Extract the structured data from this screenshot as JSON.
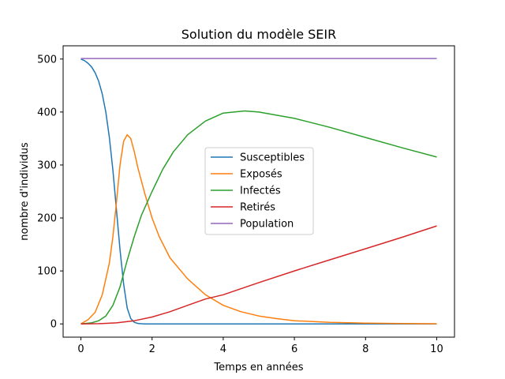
{
  "chart_data": {
    "type": "line",
    "title": "Solution du modèle SEIR",
    "xlabel": "Temps en années",
    "ylabel": "nombre d'individus",
    "xlim": [
      -0.5,
      10.5
    ],
    "ylim": [
      -25,
      525
    ],
    "xticks": [
      0,
      2,
      4,
      6,
      8,
      10
    ],
    "yticks": [
      0,
      100,
      200,
      300,
      400,
      500
    ],
    "grid": false,
    "legend_position": "center",
    "series": [
      {
        "name": "Susceptibles",
        "color": "#1f77b4",
        "x": [
          0,
          0.1,
          0.2,
          0.3,
          0.4,
          0.5,
          0.6,
          0.7,
          0.8,
          0.9,
          1.0,
          1.1,
          1.2,
          1.3,
          1.4,
          1.5,
          1.6,
          1.7,
          1.8,
          2.0,
          3,
          4,
          5,
          6,
          7,
          8,
          9,
          10
        ],
        "y": [
          500,
          497,
          492,
          485,
          474,
          458,
          434,
          400,
          352,
          290,
          215,
          140,
          75,
          30,
          10,
          3,
          1,
          0.3,
          0,
          0,
          0,
          0,
          0,
          0,
          0,
          0,
          0,
          0
        ]
      },
      {
        "name": "Exposés",
        "color": "#ff7f0e",
        "x": [
          0,
          0.2,
          0.4,
          0.6,
          0.8,
          0.9,
          1.0,
          1.1,
          1.2,
          1.3,
          1.4,
          1.5,
          1.6,
          1.8,
          2.0,
          2.2,
          2.5,
          3.0,
          3.5,
          4.0,
          4.5,
          5.0,
          5.5,
          6.0,
          7.0,
          8.0,
          9.0,
          10.0
        ],
        "y": [
          0,
          8,
          22,
          55,
          115,
          165,
          230,
          300,
          345,
          357,
          350,
          325,
          295,
          245,
          200,
          165,
          125,
          85,
          55,
          35,
          23,
          15,
          10,
          6,
          3,
          1.5,
          0.7,
          0.3
        ]
      },
      {
        "name": "Infectés",
        "color": "#2ca02c",
        "x": [
          0,
          0.3,
          0.5,
          0.7,
          0.9,
          1.1,
          1.3,
          1.5,
          1.7,
          2.0,
          2.3,
          2.6,
          3.0,
          3.5,
          4.0,
          4.6,
          5.0,
          6.0,
          7.0,
          8.0,
          9.0,
          10.0
        ],
        "y": [
          0,
          2,
          6,
          15,
          35,
          70,
          120,
          165,
          205,
          250,
          292,
          325,
          357,
          383,
          398,
          402,
          400,
          388,
          371,
          352,
          333,
          315
        ]
      },
      {
        "name": "Retirés",
        "color": "#d62728",
        "x": [
          0,
          0.5,
          1.0,
          1.5,
          2.0,
          2.5,
          3.0,
          3.5,
          4.0,
          5.0,
          6.0,
          7.0,
          8.0,
          9.0,
          10.0
        ],
        "y": [
          0,
          0.5,
          2,
          6,
          13,
          23,
          35,
          47,
          55,
          78,
          100,
          121,
          142,
          163,
          185
        ]
      },
      {
        "name": "Population",
        "color": "#9467bd",
        "x": [
          0,
          10
        ],
        "y": [
          501,
          501
        ]
      }
    ]
  }
}
